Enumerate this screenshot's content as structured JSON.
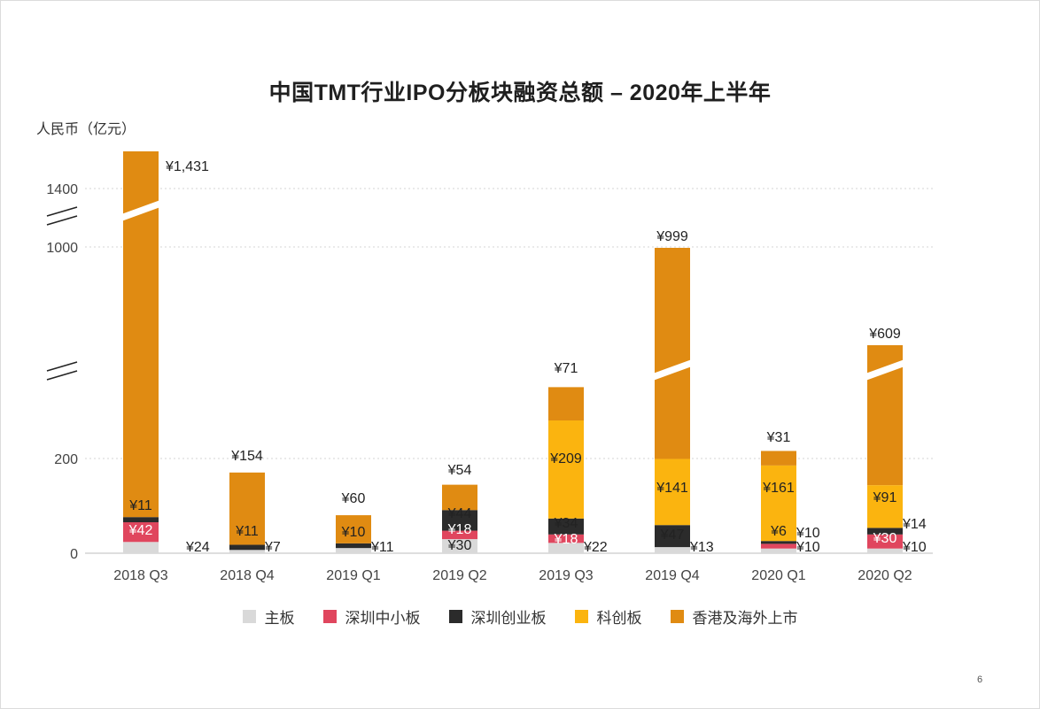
{
  "chart_data": {
    "type": "bar",
    "stacked": true,
    "title": "中国TMT行业IPO分板块融资总额 – 2020年上半年",
    "ylabel": "人民币（亿元）",
    "categories": [
      "2018 Q3",
      "2018 Q4",
      "2019 Q1",
      "2019 Q2",
      "2019 Q3",
      "2019 Q4",
      "2020 Q1",
      "2020 Q2"
    ],
    "yticks": [
      "0",
      "200",
      "1000",
      "1400"
    ],
    "axis_break": true,
    "series": [
      {
        "name": "主板",
        "color": "#d9d9d9",
        "values": [
          24,
          7,
          11,
          30,
          22,
          13,
          10,
          10
        ]
      },
      {
        "name": "深圳中小板",
        "color": "#e0465e",
        "values": [
          42,
          0,
          0,
          18,
          18,
          0,
          10,
          30
        ]
      },
      {
        "name": "深圳创业板",
        "color": "#2b2b2b",
        "values": [
          11,
          11,
          10,
          44,
          34,
          47,
          6,
          14
        ]
      },
      {
        "name": "科创板",
        "color": "#fbb40f",
        "values": [
          0,
          0,
          0,
          0,
          209,
          141,
          161,
          91
        ]
      },
      {
        "name": "香港及海外上市",
        "color": "#e08b12",
        "values": [
          1431,
          154,
          60,
          54,
          71,
          999,
          31,
          609
        ]
      }
    ],
    "labels": [
      [
        "¥24",
        "¥42",
        "¥11",
        "¥1,431"
      ],
      [
        "¥7",
        "¥11",
        "¥154"
      ],
      [
        "¥11",
        "¥10",
        "¥60"
      ],
      [
        "¥30",
        "¥18",
        "¥44",
        "¥54"
      ],
      [
        "¥22",
        "¥18",
        "¥34",
        "¥209",
        "¥71"
      ],
      [
        "¥13",
        "¥47",
        "¥141",
        "¥999"
      ],
      [
        "¥10",
        "¥10",
        "¥6",
        "¥161",
        "¥31"
      ],
      [
        "¥10",
        "¥30",
        "¥14",
        "¥91",
        "¥609"
      ]
    ]
  },
  "page_number": "6"
}
